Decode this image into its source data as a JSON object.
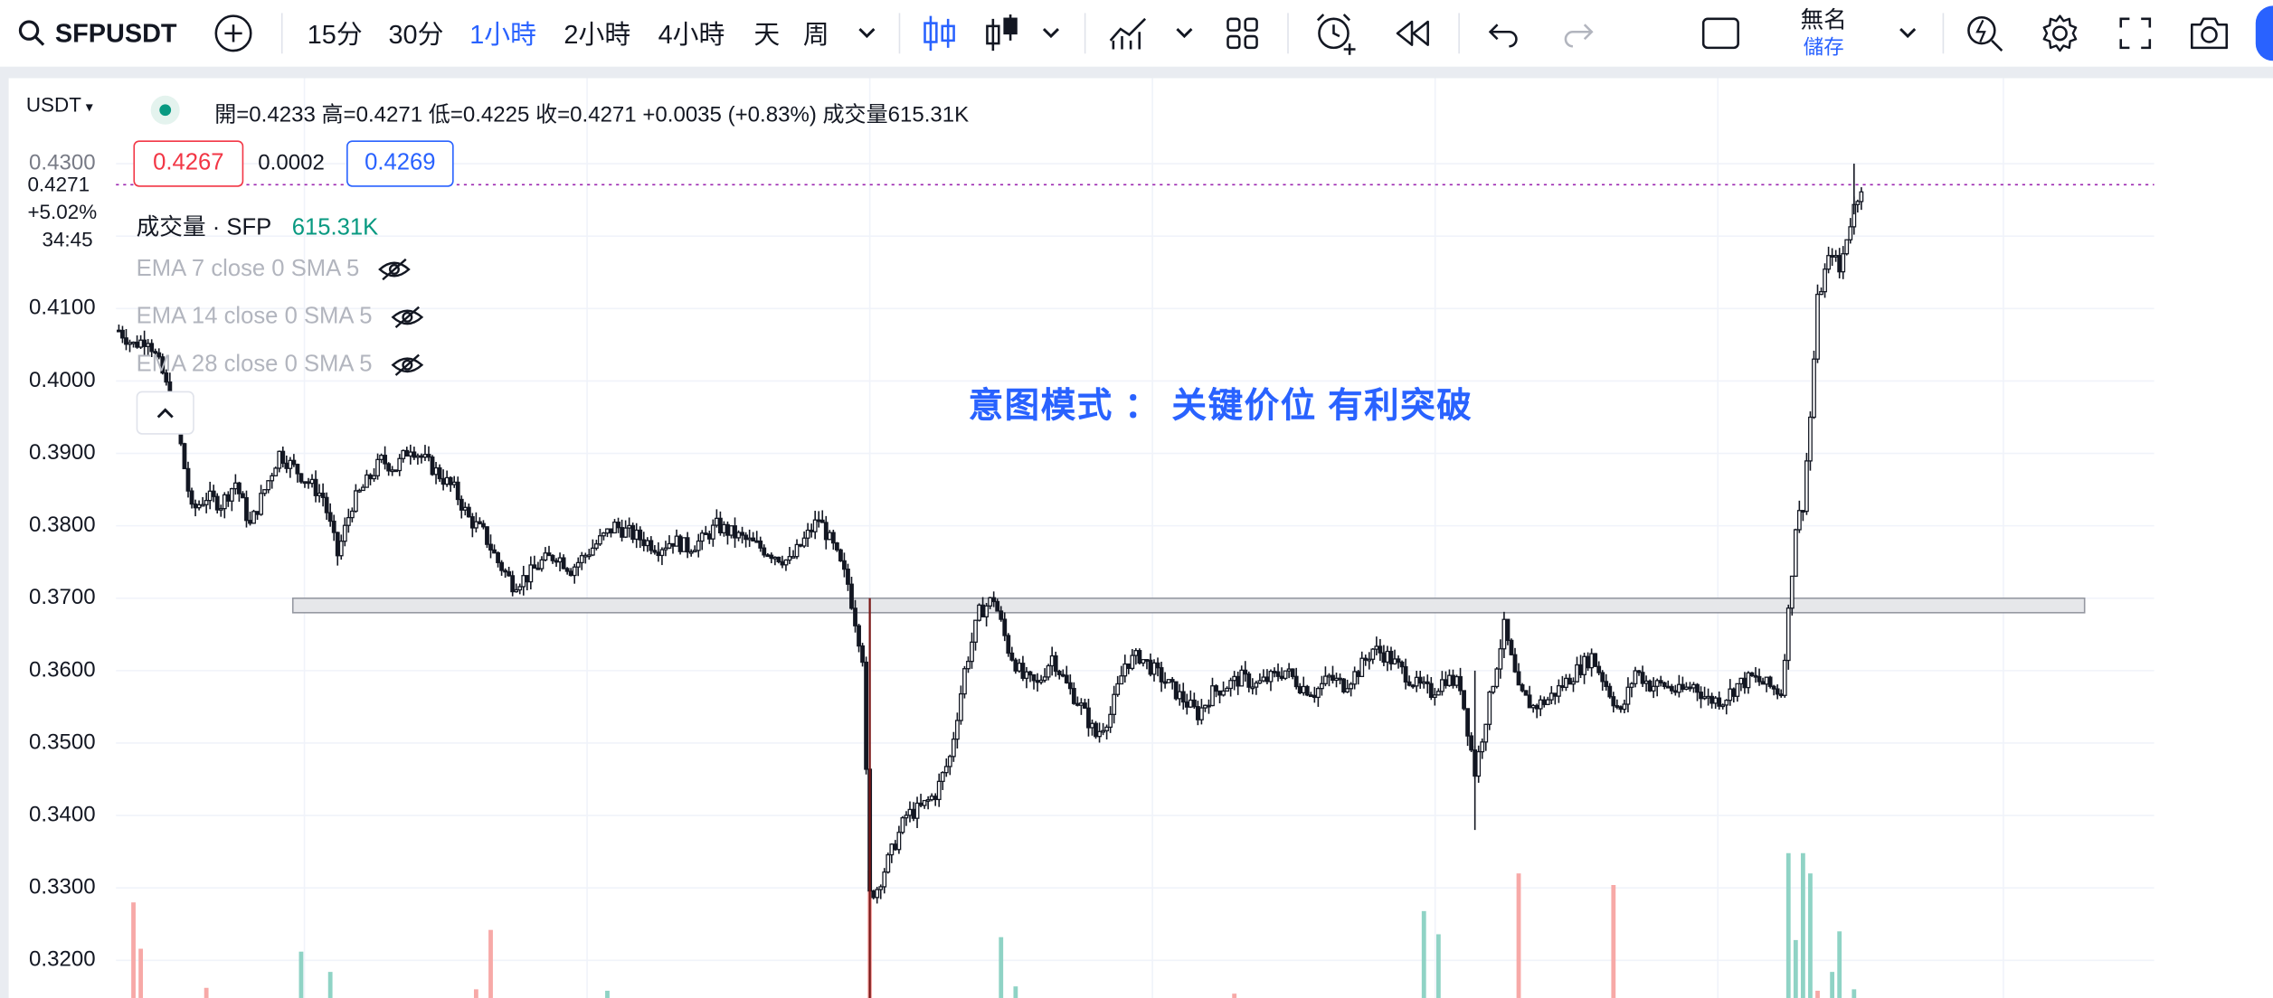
{
  "toolbar": {
    "symbol": "SFPUSDT",
    "intervals": [
      "15分",
      "30分",
      "1小時",
      "2小時",
      "4小時",
      "天",
      "周"
    ],
    "active_interval_index": 2,
    "save_title": "無名",
    "save_subtitle": "儲存"
  },
  "legend": {
    "ohlc": "開=0.4233  高=0.4271  低=0.4225  收=0.4271  +0.0035 (+0.83%)  成交量615.31K",
    "bid": "0.4267",
    "spread": "0.0002",
    "ask": "0.4269",
    "volume_label": "成交量 · SFP",
    "volume_value": "615.31K",
    "indicators": [
      "EMA 7 close 0 SMA 5",
      "EMA 14 close 0 SMA 5",
      "EMA 28 close 0 SMA 5"
    ]
  },
  "price_scale": {
    "unit": "USDT",
    "labels": [
      "0.4300",
      "0.4100",
      "0.4000",
      "0.3900",
      "0.3800",
      "0.3700",
      "0.3600",
      "0.3500",
      "0.3400",
      "0.3300",
      "0.3200"
    ],
    "current_price": "0.4271",
    "current_change": "+5.02%",
    "countdown": "34:45"
  },
  "annotation": "意图模式 ： 关键价位 有利突破",
  "colors": {
    "accent": "#2962ff",
    "up": "#089981",
    "down": "#f23645",
    "candle": "#131722",
    "resistance_fill": "#e6e7ea"
  },
  "chart_data": {
    "type": "candlestick",
    "symbol": "SFPUSDT",
    "interval": "1小時",
    "ylim": [
      0.315,
      0.432
    ],
    "resistance_zone": [
      0.368,
      0.37
    ],
    "close_path": [
      [
        0,
        0.407
      ],
      [
        4,
        0.405
      ],
      [
        8,
        0.406
      ],
      [
        12,
        0.401
      ],
      [
        16,
        0.394
      ],
      [
        20,
        0.382
      ],
      [
        24,
        0.384
      ],
      [
        28,
        0.383
      ],
      [
        32,
        0.386
      ],
      [
        36,
        0.38
      ],
      [
        40,
        0.385
      ],
      [
        44,
        0.39
      ],
      [
        48,
        0.388
      ],
      [
        52,
        0.386
      ],
      [
        56,
        0.384
      ],
      [
        60,
        0.376
      ],
      [
        64,
        0.383
      ],
      [
        68,
        0.386
      ],
      [
        72,
        0.389
      ],
      [
        76,
        0.388
      ],
      [
        80,
        0.391
      ],
      [
        84,
        0.389
      ],
      [
        88,
        0.387
      ],
      [
        92,
        0.385
      ],
      [
        96,
        0.381
      ],
      [
        100,
        0.379
      ],
      [
        104,
        0.375
      ],
      [
        108,
        0.372
      ],
      [
        112,
        0.373
      ],
      [
        116,
        0.375
      ],
      [
        120,
        0.376
      ],
      [
        124,
        0.374
      ],
      [
        128,
        0.376
      ],
      [
        132,
        0.378
      ],
      [
        136,
        0.38
      ],
      [
        140,
        0.379
      ],
      [
        144,
        0.378
      ],
      [
        148,
        0.377
      ],
      [
        152,
        0.378
      ],
      [
        156,
        0.377
      ],
      [
        160,
        0.378
      ],
      [
        164,
        0.38
      ],
      [
        168,
        0.379
      ],
      [
        172,
        0.378
      ],
      [
        176,
        0.377
      ],
      [
        180,
        0.376
      ],
      [
        184,
        0.375
      ],
      [
        188,
        0.378
      ],
      [
        192,
        0.381
      ],
      [
        196,
        0.377
      ],
      [
        200,
        0.372
      ],
      [
        204,
        0.362
      ],
      [
        206,
        0.329
      ],
      [
        208,
        0.33
      ],
      [
        212,
        0.335
      ],
      [
        216,
        0.34
      ],
      [
        220,
        0.341
      ],
      [
        224,
        0.343
      ],
      [
        228,
        0.348
      ],
      [
        232,
        0.36
      ],
      [
        236,
        0.368
      ],
      [
        240,
        0.37
      ],
      [
        244,
        0.363
      ],
      [
        248,
        0.359
      ],
      [
        252,
        0.358
      ],
      [
        256,
        0.362
      ],
      [
        260,
        0.358
      ],
      [
        264,
        0.355
      ],
      [
        268,
        0.351
      ],
      [
        272,
        0.354
      ],
      [
        276,
        0.361
      ],
      [
        280,
        0.362
      ],
      [
        284,
        0.36
      ],
      [
        288,
        0.358
      ],
      [
        292,
        0.356
      ],
      [
        296,
        0.354
      ],
      [
        300,
        0.357
      ],
      [
        304,
        0.358
      ],
      [
        308,
        0.359
      ],
      [
        312,
        0.358
      ],
      [
        316,
        0.359
      ],
      [
        320,
        0.36
      ],
      [
        324,
        0.358
      ],
      [
        328,
        0.357
      ],
      [
        332,
        0.359
      ],
      [
        336,
        0.358
      ],
      [
        340,
        0.36
      ],
      [
        344,
        0.363
      ],
      [
        348,
        0.362
      ],
      [
        352,
        0.36
      ],
      [
        356,
        0.358
      ],
      [
        360,
        0.357
      ],
      [
        364,
        0.359
      ],
      [
        368,
        0.358
      ],
      [
        372,
        0.346
      ],
      [
        376,
        0.356
      ],
      [
        380,
        0.366
      ],
      [
        384,
        0.357
      ],
      [
        388,
        0.355
      ],
      [
        392,
        0.356
      ],
      [
        396,
        0.358
      ],
      [
        400,
        0.36
      ],
      [
        404,
        0.362
      ],
      [
        408,
        0.358
      ],
      [
        412,
        0.354
      ],
      [
        416,
        0.36
      ],
      [
        420,
        0.358
      ],
      [
        424,
        0.358
      ],
      [
        428,
        0.357
      ],
      [
        432,
        0.358
      ],
      [
        436,
        0.356
      ],
      [
        440,
        0.356
      ],
      [
        444,
        0.358
      ],
      [
        448,
        0.359
      ],
      [
        452,
        0.358
      ],
      [
        456,
        0.357
      ],
      [
        458,
        0.368
      ],
      [
        460,
        0.38
      ],
      [
        462,
        0.383
      ],
      [
        464,
        0.395
      ],
      [
        466,
        0.411
      ],
      [
        468,
        0.415
      ],
      [
        470,
        0.418
      ],
      [
        472,
        0.415
      ],
      [
        474,
        0.42
      ],
      [
        476,
        0.424
      ],
      [
        478,
        0.4271
      ]
    ],
    "volume_bars": [
      {
        "x": 4,
        "value": 0.66,
        "dir": "down"
      },
      {
        "x": 6,
        "value": 0.34,
        "dir": "down"
      },
      {
        "x": 24,
        "value": 0.07,
        "dir": "down"
      },
      {
        "x": 50,
        "value": 0.32,
        "dir": "up"
      },
      {
        "x": 58,
        "value": 0.18,
        "dir": "up"
      },
      {
        "x": 98,
        "value": 0.06,
        "dir": "down"
      },
      {
        "x": 102,
        "value": 0.47,
        "dir": "down"
      },
      {
        "x": 134,
        "value": 0.05,
        "dir": "up"
      },
      {
        "x": 206,
        "value": 0.88,
        "dir": "down"
      },
      {
        "x": 242,
        "value": 0.42,
        "dir": "up"
      },
      {
        "x": 246,
        "value": 0.08,
        "dir": "up"
      },
      {
        "x": 306,
        "value": 0.03,
        "dir": "down"
      },
      {
        "x": 358,
        "value": 0.6,
        "dir": "up"
      },
      {
        "x": 362,
        "value": 0.44,
        "dir": "up"
      },
      {
        "x": 384,
        "value": 0.86,
        "dir": "down"
      },
      {
        "x": 410,
        "value": 0.78,
        "dir": "down"
      },
      {
        "x": 458,
        "value": 1.0,
        "dir": "up"
      },
      {
        "x": 460,
        "value": 0.4,
        "dir": "up"
      },
      {
        "x": 462,
        "value": 1.0,
        "dir": "up"
      },
      {
        "x": 464,
        "value": 0.86,
        "dir": "up"
      },
      {
        "x": 466,
        "value": 0.05,
        "dir": "down"
      },
      {
        "x": 470,
        "value": 0.18,
        "dir": "up"
      },
      {
        "x": 472,
        "value": 0.46,
        "dir": "up"
      },
      {
        "x": 476,
        "value": 0.06,
        "dir": "up"
      }
    ]
  }
}
